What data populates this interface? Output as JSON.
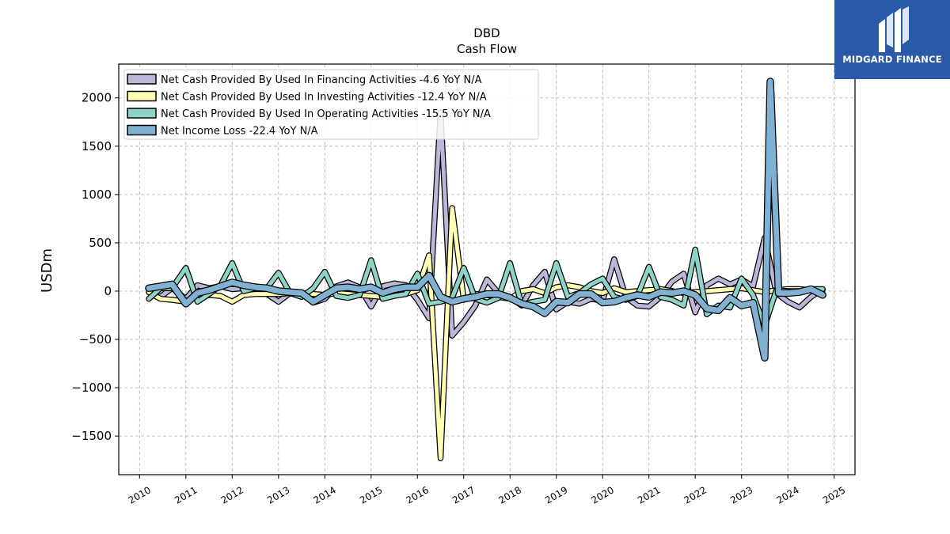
{
  "logo": {
    "text": "MIDGARD FINANCE",
    "bg_color": "#2a5aa8"
  },
  "chart_data": {
    "type": "line",
    "title": "DBD",
    "subtitle": "Cash Flow",
    "xlabel": "",
    "ylabel": "USDm",
    "xlim": [
      2009.55,
      2025.45
    ],
    "ylim": [
      -1900,
      2350
    ],
    "yticks": [
      -1500,
      -1000,
      -500,
      0,
      500,
      1000,
      1500,
      2000
    ],
    "ytick_labels": [
      "−1500",
      "−1000",
      "−500",
      "0",
      "500",
      "1000",
      "1500",
      "2000"
    ],
    "xticks": [
      2010,
      2011,
      2012,
      2013,
      2014,
      2015,
      2016,
      2017,
      2018,
      2019,
      2020,
      2021,
      2022,
      2023,
      2024,
      2025
    ],
    "xtick_labels": [
      "2010",
      "2011",
      "2012",
      "2013",
      "2014",
      "2015",
      "2016",
      "2017",
      "2018",
      "2019",
      "2020",
      "2021",
      "2022",
      "2023",
      "2024",
      "2025"
    ],
    "grid": true,
    "legend_position": "top-left",
    "series": [
      {
        "name": "Net Cash Provided By Used In Financing Activities  -4.6 YoY N/A",
        "color": "#bcb6d8",
        "width": 5,
        "points": [
          [
            2010.2,
            -10
          ],
          [
            2010.45,
            -60
          ],
          [
            2010.7,
            30
          ],
          [
            2011.0,
            -80
          ],
          [
            2011.25,
            60
          ],
          [
            2011.5,
            30
          ],
          [
            2011.75,
            50
          ],
          [
            2012.0,
            20
          ],
          [
            2012.25,
            30
          ],
          [
            2012.5,
            10
          ],
          [
            2012.75,
            -30
          ],
          [
            2013.0,
            -110
          ],
          [
            2013.25,
            -20
          ],
          [
            2013.5,
            -30
          ],
          [
            2013.75,
            -120
          ],
          [
            2014.0,
            -80
          ],
          [
            2014.25,
            50
          ],
          [
            2014.5,
            90
          ],
          [
            2014.75,
            40
          ],
          [
            2015.0,
            -160
          ],
          [
            2015.25,
            50
          ],
          [
            2015.5,
            80
          ],
          [
            2015.75,
            60
          ],
          [
            2016.0,
            -90
          ],
          [
            2016.25,
            -280
          ],
          [
            2016.5,
            1850
          ],
          [
            2016.75,
            -460
          ],
          [
            2017.0,
            -320
          ],
          [
            2017.25,
            -150
          ],
          [
            2017.5,
            120
          ],
          [
            2017.75,
            -20
          ],
          [
            2018.0,
            -60
          ],
          [
            2018.25,
            -150
          ],
          [
            2018.5,
            60
          ],
          [
            2018.75,
            200
          ],
          [
            2019.0,
            -190
          ],
          [
            2019.25,
            -110
          ],
          [
            2019.5,
            -130
          ],
          [
            2019.75,
            -80
          ],
          [
            2020.0,
            -100
          ],
          [
            2020.25,
            330
          ],
          [
            2020.5,
            -60
          ],
          [
            2020.75,
            -150
          ],
          [
            2021.0,
            -160
          ],
          [
            2021.25,
            -60
          ],
          [
            2021.5,
            100
          ],
          [
            2021.75,
            180
          ],
          [
            2022.0,
            -220
          ],
          [
            2022.25,
            60
          ],
          [
            2022.5,
            130
          ],
          [
            2022.75,
            70
          ],
          [
            2023.0,
            120
          ],
          [
            2023.25,
            50
          ],
          [
            2023.5,
            550
          ],
          [
            2023.75,
            -20
          ],
          [
            2024.0,
            -110
          ],
          [
            2024.25,
            -170
          ],
          [
            2024.5,
            -60
          ],
          [
            2024.75,
            20
          ]
        ]
      },
      {
        "name": "Net Cash Provided By Used In Investing Activities  -12.4 YoY N/A",
        "color": "#ffffb3",
        "width": 5,
        "points": [
          [
            2010.2,
            -10
          ],
          [
            2010.45,
            -80
          ],
          [
            2010.7,
            -90
          ],
          [
            2011.0,
            -110
          ],
          [
            2011.25,
            -50
          ],
          [
            2011.5,
            -40
          ],
          [
            2011.75,
            -50
          ],
          [
            2012.0,
            -110
          ],
          [
            2012.25,
            -40
          ],
          [
            2012.5,
            -30
          ],
          [
            2012.75,
            -30
          ],
          [
            2013.0,
            -30
          ],
          [
            2013.25,
            -20
          ],
          [
            2013.5,
            -20
          ],
          [
            2013.75,
            -30
          ],
          [
            2014.0,
            -40
          ],
          [
            2014.25,
            -20
          ],
          [
            2014.5,
            -30
          ],
          [
            2014.75,
            -40
          ],
          [
            2015.0,
            -50
          ],
          [
            2015.25,
            -60
          ],
          [
            2015.5,
            -40
          ],
          [
            2015.75,
            -30
          ],
          [
            2016.0,
            10
          ],
          [
            2016.25,
            370
          ],
          [
            2016.5,
            -1730
          ],
          [
            2016.75,
            860
          ],
          [
            2017.0,
            -90
          ],
          [
            2017.25,
            -30
          ],
          [
            2017.5,
            -40
          ],
          [
            2017.75,
            -60
          ],
          [
            2018.0,
            -80
          ],
          [
            2018.25,
            0
          ],
          [
            2018.5,
            20
          ],
          [
            2018.75,
            -20
          ],
          [
            2019.0,
            40
          ],
          [
            2019.25,
            60
          ],
          [
            2019.5,
            40
          ],
          [
            2019.75,
            0
          ],
          [
            2020.0,
            -20
          ],
          [
            2020.25,
            30
          ],
          [
            2020.5,
            -10
          ],
          [
            2020.75,
            0
          ],
          [
            2021.0,
            10
          ],
          [
            2021.25,
            20
          ],
          [
            2021.5,
            0
          ],
          [
            2021.75,
            -20
          ],
          [
            2022.0,
            -10
          ],
          [
            2022.25,
            0
          ],
          [
            2022.5,
            10
          ],
          [
            2022.75,
            20
          ],
          [
            2023.0,
            30
          ],
          [
            2023.25,
            10
          ],
          [
            2023.5,
            -10
          ],
          [
            2023.75,
            10
          ],
          [
            2024.0,
            20
          ],
          [
            2024.25,
            20
          ],
          [
            2024.5,
            10
          ],
          [
            2024.75,
            10
          ]
        ]
      },
      {
        "name": "Net Cash Provided By Used In Operating Activities  -15.5 YoY N/A",
        "color": "#8dd3c7",
        "width": 5,
        "points": [
          [
            2010.2,
            -80
          ],
          [
            2010.45,
            30
          ],
          [
            2010.7,
            30
          ],
          [
            2011.0,
            240
          ],
          [
            2011.25,
            -110
          ],
          [
            2011.5,
            -30
          ],
          [
            2011.75,
            60
          ],
          [
            2012.0,
            290
          ],
          [
            2012.25,
            0
          ],
          [
            2012.5,
            30
          ],
          [
            2012.75,
            30
          ],
          [
            2013.0,
            190
          ],
          [
            2013.25,
            -20
          ],
          [
            2013.5,
            -60
          ],
          [
            2013.75,
            30
          ],
          [
            2014.0,
            200
          ],
          [
            2014.25,
            -50
          ],
          [
            2014.5,
            -70
          ],
          [
            2014.75,
            -40
          ],
          [
            2015.0,
            320
          ],
          [
            2015.25,
            -80
          ],
          [
            2015.5,
            -50
          ],
          [
            2015.75,
            -30
          ],
          [
            2016.0,
            180
          ],
          [
            2016.25,
            -130
          ],
          [
            2016.5,
            -110
          ],
          [
            2016.75,
            -70
          ],
          [
            2017.0,
            240
          ],
          [
            2017.25,
            -80
          ],
          [
            2017.5,
            -120
          ],
          [
            2017.75,
            -70
          ],
          [
            2018.0,
            290
          ],
          [
            2018.25,
            -140
          ],
          [
            2018.5,
            -110
          ],
          [
            2018.75,
            -90
          ],
          [
            2019.0,
            290
          ],
          [
            2019.25,
            -60
          ],
          [
            2019.5,
            -20
          ],
          [
            2019.75,
            70
          ],
          [
            2020.0,
            130
          ],
          [
            2020.25,
            -60
          ],
          [
            2020.5,
            -90
          ],
          [
            2020.75,
            -50
          ],
          [
            2021.0,
            250
          ],
          [
            2021.25,
            -60
          ],
          [
            2021.5,
            -90
          ],
          [
            2021.75,
            -150
          ],
          [
            2022.0,
            430
          ],
          [
            2022.25,
            -240
          ],
          [
            2022.5,
            -150
          ],
          [
            2022.75,
            -170
          ],
          [
            2023.0,
            130
          ],
          [
            2023.25,
            -40
          ],
          [
            2023.5,
            -360
          ],
          [
            2023.75,
            10
          ],
          [
            2024.0,
            0
          ],
          [
            2024.25,
            0
          ],
          [
            2024.5,
            20
          ],
          [
            2024.75,
            20
          ]
        ]
      },
      {
        "name": "Net Income Loss  -22.4 YoY N/A",
        "color": "#80b1d3",
        "width": 7,
        "points": [
          [
            2010.2,
            30
          ],
          [
            2010.45,
            50
          ],
          [
            2010.7,
            70
          ],
          [
            2011.0,
            -130
          ],
          [
            2011.25,
            -20
          ],
          [
            2011.5,
            10
          ],
          [
            2011.75,
            50
          ],
          [
            2012.0,
            90
          ],
          [
            2012.25,
            60
          ],
          [
            2012.5,
            40
          ],
          [
            2012.75,
            30
          ],
          [
            2013.0,
            0
          ],
          [
            2013.25,
            -10
          ],
          [
            2013.5,
            -20
          ],
          [
            2013.75,
            -110
          ],
          [
            2014.0,
            -40
          ],
          [
            2014.25,
            30
          ],
          [
            2014.5,
            40
          ],
          [
            2014.75,
            20
          ],
          [
            2015.0,
            40
          ],
          [
            2015.25,
            -20
          ],
          [
            2015.5,
            20
          ],
          [
            2015.75,
            40
          ],
          [
            2016.0,
            40
          ],
          [
            2016.25,
            160
          ],
          [
            2016.5,
            -60
          ],
          [
            2016.75,
            -110
          ],
          [
            2017.0,
            -80
          ],
          [
            2017.25,
            -60
          ],
          [
            2017.5,
            -30
          ],
          [
            2017.75,
            -30
          ],
          [
            2018.0,
            -70
          ],
          [
            2018.25,
            -130
          ],
          [
            2018.5,
            -160
          ],
          [
            2018.75,
            -230
          ],
          [
            2019.0,
            -110
          ],
          [
            2019.25,
            -120
          ],
          [
            2019.5,
            -30
          ],
          [
            2019.75,
            -30
          ],
          [
            2020.0,
            -120
          ],
          [
            2020.25,
            -110
          ],
          [
            2020.5,
            -70
          ],
          [
            2020.75,
            -40
          ],
          [
            2021.0,
            -60
          ],
          [
            2021.25,
            -10
          ],
          [
            2021.5,
            -20
          ],
          [
            2021.75,
            0
          ],
          [
            2022.0,
            -40
          ],
          [
            2022.25,
            -180
          ],
          [
            2022.5,
            -200
          ],
          [
            2022.75,
            -70
          ],
          [
            2023.0,
            -150
          ],
          [
            2023.25,
            -120
          ],
          [
            2023.5,
            -690
          ],
          [
            2023.62,
            2170
          ],
          [
            2023.8,
            -20
          ],
          [
            2024.0,
            -20
          ],
          [
            2024.25,
            -10
          ],
          [
            2024.5,
            20
          ],
          [
            2024.75,
            -40
          ]
        ]
      }
    ]
  }
}
